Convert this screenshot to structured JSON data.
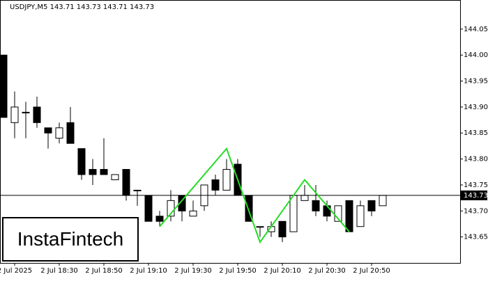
{
  "chart_data": {
    "type": "candlestick",
    "title": "USDJPY,M5  143.71 143.73 143.71 143.73",
    "categories": [
      null,
      "2 Jul 2025",
      null,
      null,
      null,
      "2 Jul 18:30",
      null,
      null,
      null,
      "2 Jul 18:50",
      null,
      null,
      null,
      "2 Jul 19:10",
      null,
      null,
      null,
      "2 Jul 19:30",
      null,
      null,
      null,
      "2 Jul 19:50",
      null,
      null,
      null,
      "2 Jul 20:10",
      null,
      null,
      null,
      "2 Jul 20:30",
      null,
      null,
      null,
      "2 Jul 20:50",
      null
    ],
    "open": [
      144.0,
      143.87,
      143.89,
      143.9,
      143.86,
      143.84,
      143.87,
      143.82,
      143.78,
      143.78,
      143.76,
      143.78,
      143.74,
      143.73,
      143.69,
      143.69,
      143.73,
      143.69,
      143.71,
      143.76,
      143.74,
      143.79,
      143.73,
      143.67,
      143.66,
      143.68,
      143.66,
      143.72,
      143.72,
      143.71,
      143.68,
      143.72,
      143.67,
      143.72,
      143.71
    ],
    "high": [
      144.0,
      143.93,
      143.91,
      143.92,
      143.86,
      143.87,
      143.9,
      143.82,
      143.8,
      143.84,
      143.77,
      143.78,
      143.74,
      143.73,
      143.7,
      143.74,
      143.73,
      143.72,
      143.75,
      143.77,
      143.8,
      143.8,
      143.73,
      143.67,
      143.68,
      143.68,
      143.73,
      143.75,
      143.75,
      143.72,
      143.71,
      143.72,
      143.72,
      143.72,
      143.73
    ],
    "low": [
      143.88,
      143.84,
      143.84,
      143.86,
      143.82,
      143.83,
      143.83,
      143.76,
      143.75,
      143.77,
      143.76,
      143.72,
      143.71,
      143.68,
      143.67,
      143.68,
      143.68,
      143.69,
      143.7,
      143.73,
      143.74,
      143.73,
      143.68,
      143.65,
      143.65,
      143.64,
      143.66,
      143.72,
      143.69,
      143.68,
      143.68,
      143.66,
      143.67,
      143.69,
      143.71
    ],
    "close": [
      143.88,
      143.9,
      143.89,
      143.87,
      143.85,
      143.86,
      143.83,
      143.77,
      143.77,
      143.77,
      143.77,
      143.73,
      143.74,
      143.68,
      143.68,
      143.72,
      143.7,
      143.7,
      143.75,
      143.74,
      143.78,
      143.73,
      143.68,
      143.67,
      143.67,
      143.65,
      143.73,
      143.73,
      143.7,
      143.69,
      143.71,
      143.66,
      143.71,
      143.7,
      143.73
    ],
    "last_price": 143.73,
    "pattern": {
      "color": "#22dd22",
      "at": [
        14,
        20,
        23,
        27,
        31
      ],
      "values": [
        143.67,
        143.82,
        143.64,
        143.76,
        143.66
      ]
    },
    "ylim": [
      143.6,
      144.106
    ],
    "yticks": [
      143.65,
      {
        "value": 143.7,
        "label": "143.70"
      },
      143.75,
      {
        "value": 143.8,
        "label": "143.80"
      },
      143.85,
      {
        "value": 143.9,
        "label": "143.90"
      },
      143.95,
      {
        "value": 144,
        "label": "144.00"
      },
      144.05
    ],
    "watermark": "InstaFintech"
  }
}
